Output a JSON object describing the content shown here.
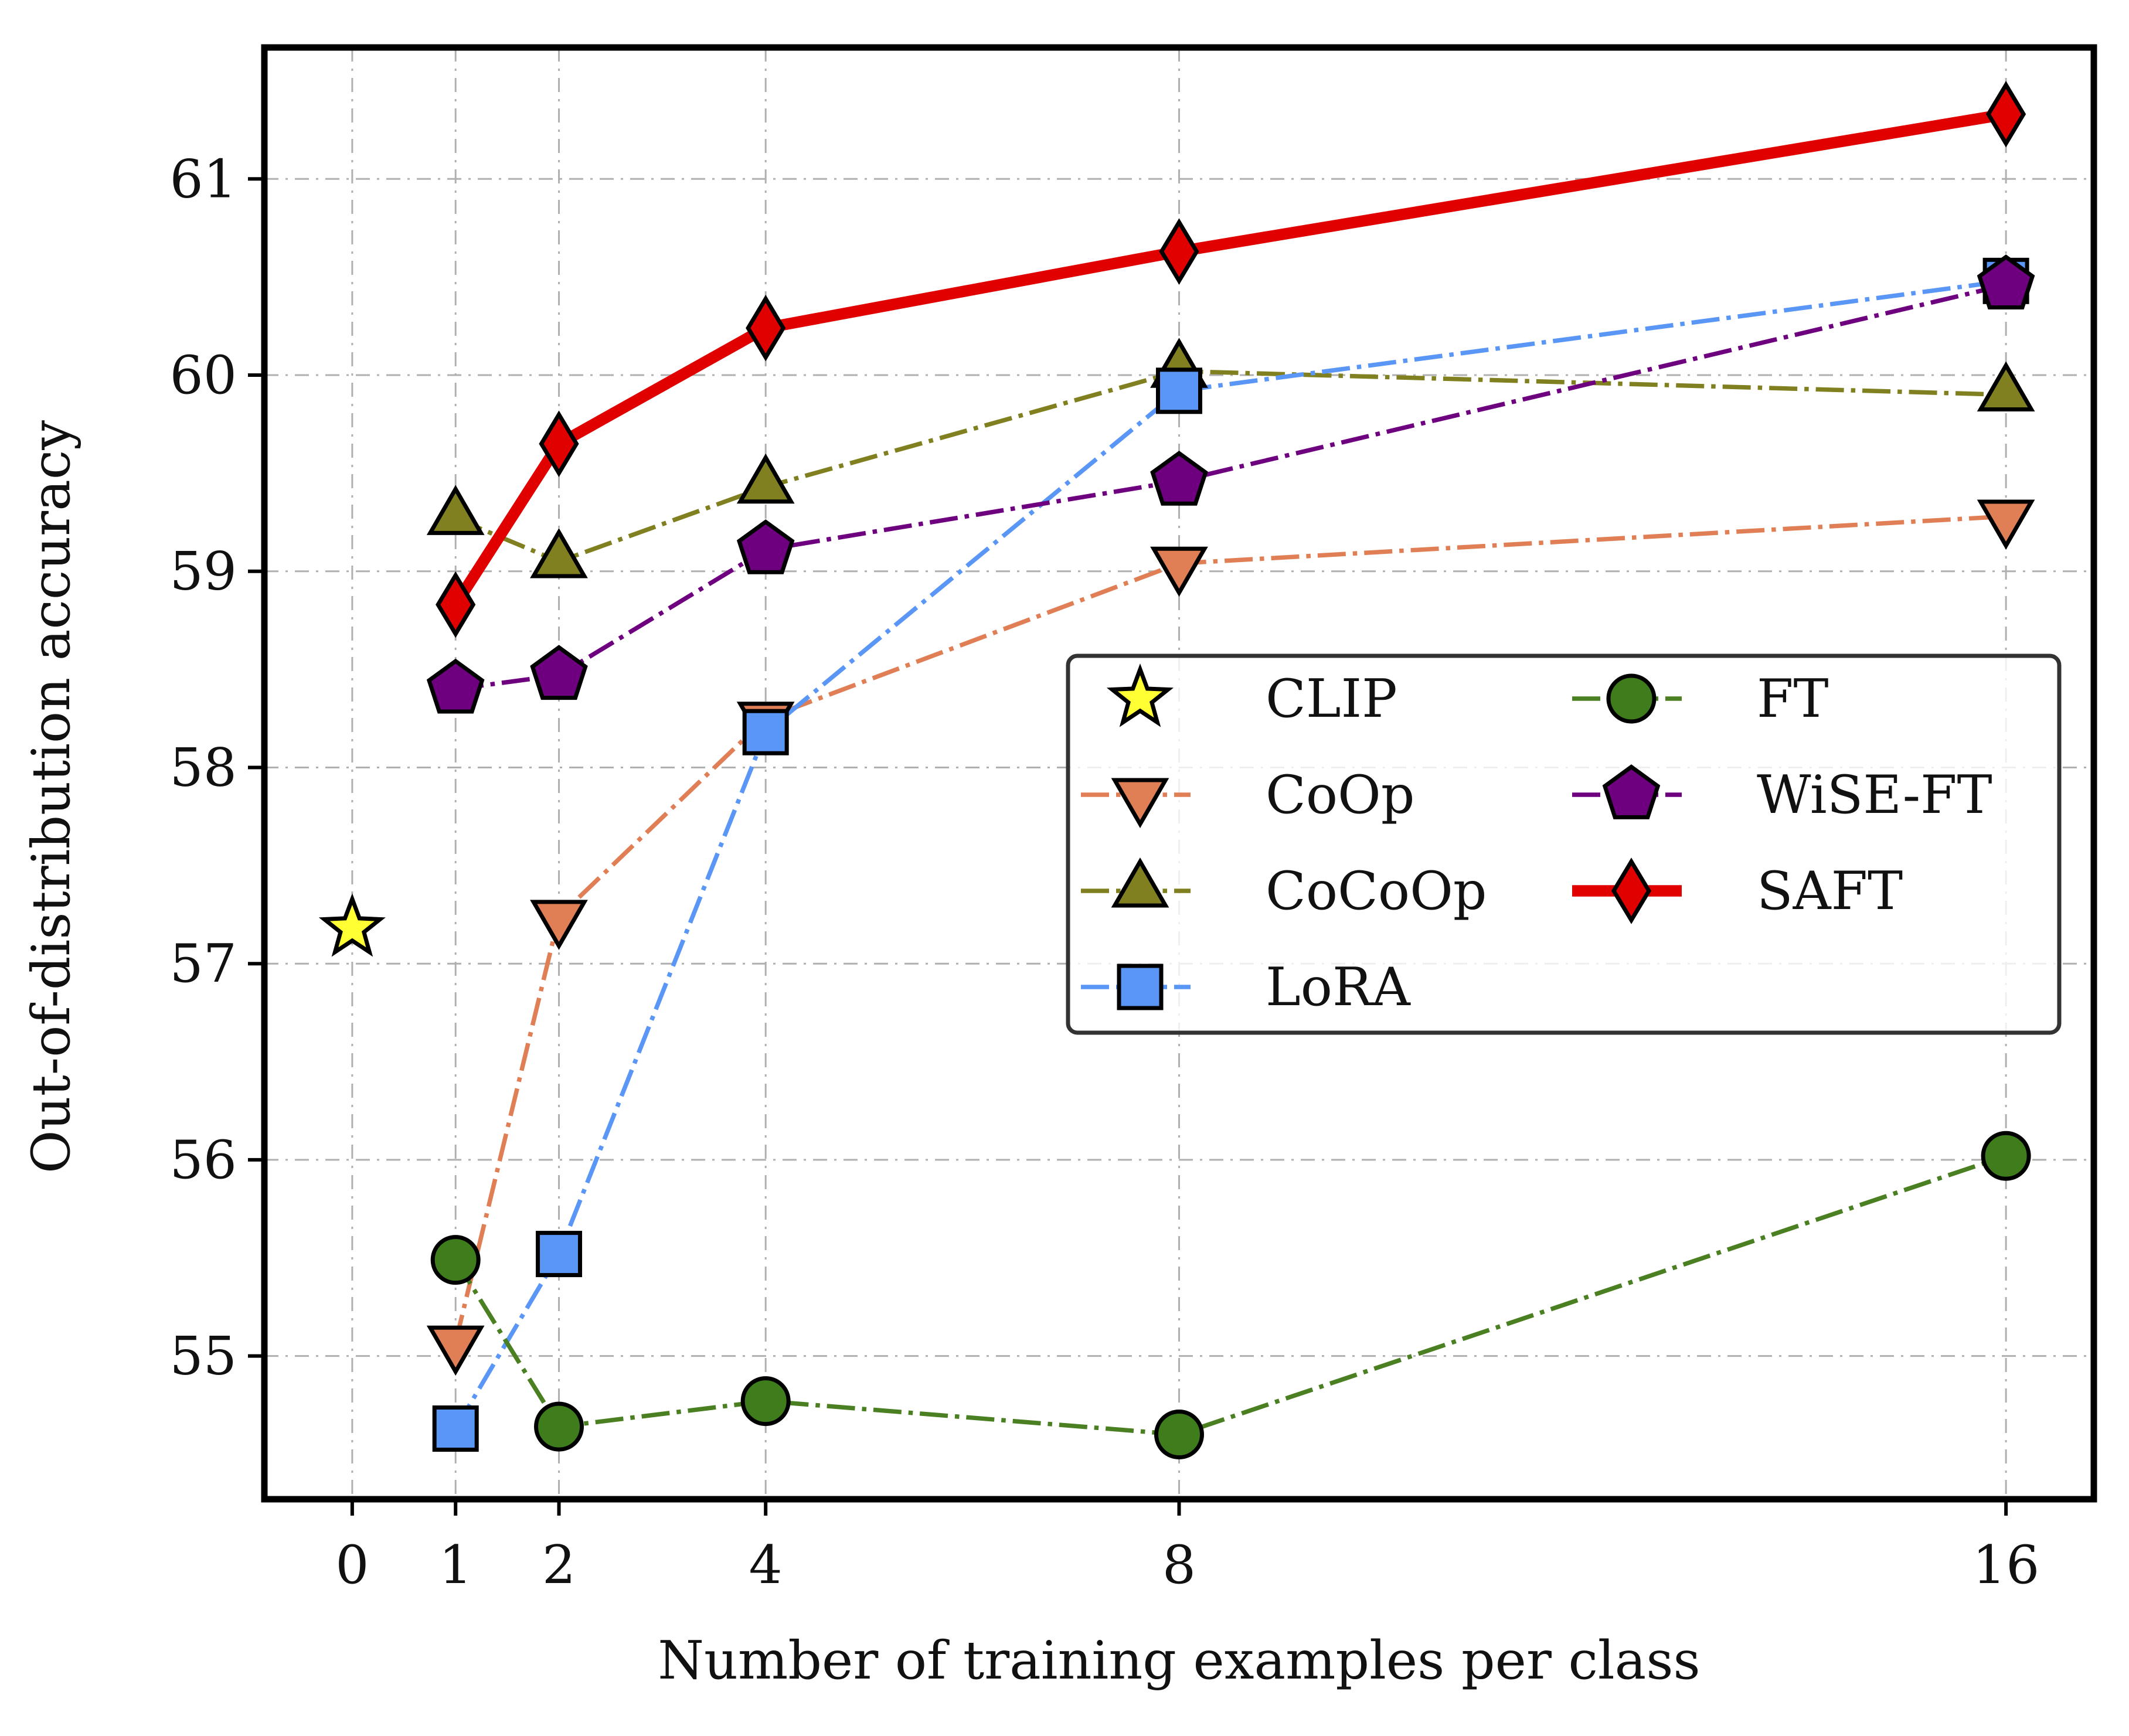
{
  "chart_data": {
    "type": "line",
    "title": "",
    "xlabel": "Number of training examples per class",
    "ylabel": "Out-of-distribution accuracy",
    "x_ticks": [
      0,
      1,
      2,
      4,
      8,
      16
    ],
    "y_ticks": [
      55,
      56,
      57,
      58,
      59,
      60,
      61
    ],
    "xlim": [
      -0.85,
      16.85
    ],
    "ylim": [
      54.27,
      61.67
    ],
    "grid": true,
    "legend": {
      "placement": "center-right",
      "columns": 2
    },
    "series": [
      {
        "name": "CLIP",
        "x": [
          0
        ],
        "y": [
          57.18
        ],
        "color": "#ffff33",
        "line_color": "none",
        "marker": "star",
        "linestyle": "none",
        "linewidth": 0
      },
      {
        "name": "CoOp",
        "x": [
          1,
          2,
          4,
          8,
          16
        ],
        "y": [
          55.07,
          57.24,
          58.25,
          59.04,
          59.28
        ],
        "color": "#e07f55",
        "line_color": "#e07f55",
        "marker": "triangle-down",
        "linestyle": "dashdot",
        "linewidth": 1
      },
      {
        "name": "CoCoOp",
        "x": [
          1,
          2,
          4,
          8,
          16
        ],
        "y": [
          59.27,
          59.05,
          59.43,
          60.02,
          59.9
        ],
        "color": "#808020",
        "line_color": "#808020",
        "marker": "triangle-up",
        "linestyle": "dashdot",
        "linewidth": 1
      },
      {
        "name": "LoRA",
        "x": [
          1,
          2,
          4,
          8,
          16
        ],
        "y": [
          54.63,
          55.52,
          58.18,
          59.92,
          60.48
        ],
        "color": "#5a96f6",
        "line_color": "#5a96f6",
        "marker": "square",
        "linestyle": "dashdot",
        "linewidth": 1
      },
      {
        "name": "FT",
        "x": [
          1,
          2,
          4,
          8,
          16
        ],
        "y": [
          55.49,
          54.64,
          54.77,
          54.6,
          56.02
        ],
        "color": "#3f7d1c",
        "line_color": "#4a7f22",
        "marker": "circle",
        "linestyle": "dashdot",
        "linewidth": 1
      },
      {
        "name": "WiSE-FT",
        "x": [
          1,
          2,
          4,
          8,
          16
        ],
        "y": [
          58.4,
          58.47,
          59.11,
          59.46,
          60.46
        ],
        "color": "#6e0080",
        "line_color": "#6e0080",
        "marker": "pentagon",
        "linestyle": "dashdot",
        "linewidth": 1
      },
      {
        "name": "SAFT",
        "x": [
          1,
          2,
          4,
          8,
          16
        ],
        "y": [
          58.83,
          59.65,
          60.24,
          60.63,
          61.33
        ],
        "color": "#e00000",
        "line_color": "#e00000",
        "marker": "diamond",
        "linestyle": "solid",
        "linewidth": 2.6
      }
    ]
  }
}
